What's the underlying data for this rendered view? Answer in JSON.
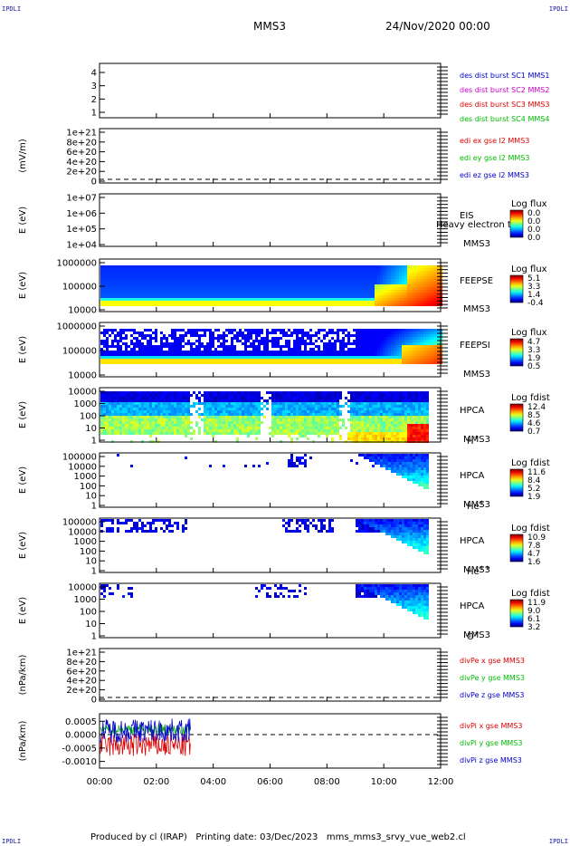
{
  "header": {
    "corner_left_top": "IPDLI",
    "corner_right_top": "IPDLI",
    "corner_left_bottom": "IPDLI",
    "corner_right_bottom": "IPDLI",
    "title": "MMS3",
    "date": "24/Nov/2020 00:00"
  },
  "footer": {
    "produced": "Produced by cl (IRAP)",
    "printing": "Printing date: 03/Dec/2023",
    "script": "mms_mms3_srvy_vue_web2.cl"
  },
  "colors": {
    "blue": "#0000cc",
    "magenta": "#cc00cc",
    "red": "#dd0000",
    "green": "#00bb00"
  },
  "chart_data": {
    "type": "multi-panel time series / spectrogram",
    "x_tick_labels": [
      "00:00",
      "02:00",
      "04:00",
      "06:00",
      "08:00",
      "10:00",
      "12:00"
    ],
    "xlim_hours": [
      0,
      12
    ],
    "panels": [
      {
        "type": "line",
        "y_tick_labels": [
          "1",
          "2",
          "3",
          "4"
        ],
        "ylim": [
          0.6,
          4.4
        ],
        "ylabel": "",
        "legend": [
          {
            "text": "des dist burst SC1 MMS1",
            "color": "#0000cc"
          },
          {
            "text": "des dist burst SC2 MMS2",
            "color": "#cc00cc"
          },
          {
            "text": "des dist burst SC3 MMS3",
            "color": "#dd0000"
          },
          {
            "text": "des dist burst SC4 MMS4",
            "color": "#00bb00"
          }
        ]
      },
      {
        "type": "line",
        "ylabel": "(mV/m)",
        "y_tick_labels": [
          "0",
          "2e+20",
          "4e+20",
          "6e+20",
          "8e+20",
          "1e+21"
        ],
        "dashed_zero": true,
        "legend": [
          {
            "text": "edi ex gse l2 MMS3",
            "color": "#dd0000"
          },
          {
            "text": "edi ey gse l2 MMS3",
            "color": "#00bb00"
          },
          {
            "text": "edi ez gse l2 MMS3",
            "color": "#0000cc"
          }
        ]
      },
      {
        "type": "heatmap",
        "ylabel": "E (eV)",
        "y_tick_labels": [
          "1e+04",
          "1e+05",
          "1e+06",
          "1e+07"
        ],
        "instrument": "EIS",
        "instrument_sub": "Heavy electron t",
        "sc": "MMS3",
        "cbar_title": "Log flux",
        "cbar_ticks": [
          "0.0",
          "0.0",
          "0.0",
          "0.0"
        ],
        "pattern": "empty"
      },
      {
        "type": "heatmap",
        "ylabel": "E (eV)",
        "y_tick_labels": [
          "10000",
          "100000",
          "1000000"
        ],
        "instrument": "FEEPSE",
        "sc": "MMS3",
        "cbar_title": "Log flux",
        "cbar_ticks": [
          "5.1",
          "3.3",
          "1.4",
          "-0.4"
        ],
        "pattern": "feeps_e"
      },
      {
        "type": "heatmap",
        "ylabel": "E (eV)",
        "y_tick_labels": [
          "10000",
          "100000",
          "1000000"
        ],
        "instrument": "FEEPSI",
        "sc": "MMS3",
        "cbar_title": "Log flux",
        "cbar_ticks": [
          "4.7",
          "3.3",
          "1.9",
          "0.5"
        ],
        "pattern": "feeps_i"
      },
      {
        "type": "heatmap",
        "ylabel": "E (eV)",
        "y_tick_labels": [
          "1",
          "10",
          "100",
          "1000",
          "10000"
        ],
        "instrument": "HPCA",
        "sc": "MMS3",
        "species": "H",
        "species_sup": "+",
        "cbar_title": "Log fdist",
        "cbar_ticks": [
          "12.4",
          "8.5",
          "4.6",
          "0.7"
        ],
        "pattern": "hpca_h"
      },
      {
        "type": "heatmap",
        "ylabel": "E (eV)",
        "y_tick_labels": [
          "1",
          "10",
          "100",
          "1000",
          "10000",
          "100000"
        ],
        "instrument": "HPCA",
        "sc": "MMS3",
        "species": "He",
        "species_sup": "+",
        "cbar_title": "Log fdist",
        "cbar_ticks": [
          "11.6",
          "8.4",
          "5.2",
          "1.9"
        ],
        "pattern": "hpca_he"
      },
      {
        "type": "heatmap",
        "ylabel": "E (eV)",
        "y_tick_labels": [
          "1",
          "10",
          "100",
          "1000",
          "10000",
          "100000"
        ],
        "instrument": "HPCA",
        "sc": "MMS3",
        "species": "He",
        "species_sup": "++",
        "cbar_title": "Log fdist",
        "cbar_ticks": [
          "10.9",
          "7.8",
          "4.7",
          "1.6"
        ],
        "pattern": "hpca_hepp"
      },
      {
        "type": "heatmap",
        "ylabel": "E (eV)",
        "y_tick_labels": [
          "1",
          "10",
          "100",
          "1000",
          "10000"
        ],
        "instrument": "HPCA",
        "sc": "MMS3",
        "species": "O",
        "species_sup": "+",
        "cbar_title": "Log fdist",
        "cbar_ticks": [
          "11.9",
          "9.0",
          "6.1",
          "3.2"
        ],
        "pattern": "hpca_o"
      },
      {
        "type": "line",
        "ylabel": "(nPa/km)",
        "y_tick_labels": [
          "0",
          "2e+20",
          "4e+20",
          "6e+20",
          "8e+20",
          "1e+21"
        ],
        "dashed_zero": true,
        "legend": [
          {
            "text": "divPe x gse MMS3",
            "color": "#dd0000"
          },
          {
            "text": "divPe y gse MMS3",
            "color": "#00bb00"
          },
          {
            "text": "divPe z gse MMS3",
            "color": "#0000cc"
          }
        ]
      },
      {
        "type": "line",
        "ylabel": "(nPa/km)",
        "y_tick_labels": [
          "-0.0010",
          "-0.0005",
          "0.0000",
          "0.0005"
        ],
        "ylim": [
          -0.00125,
          0.00078
        ],
        "dashed_zero": true,
        "data_end_hour": 3.2,
        "series_amplitude": [
          {
            "name": "divPi x gse MMS3",
            "center": -0.0004,
            "amplitude": 0.00045
          },
          {
            "name": "divPi y gse MMS3",
            "center": 0.0002,
            "amplitude": 0.0002
          },
          {
            "name": "divPi z gse MMS3",
            "center": 0.00015,
            "amplitude": 0.00045
          }
        ],
        "legend": [
          {
            "text": "divPi x gse MMS3",
            "color": "#dd0000"
          },
          {
            "text": "divPi y gse MMS3",
            "color": "#00bb00"
          },
          {
            "text": "divPi z gse MMS3",
            "color": "#0000cc"
          }
        ]
      }
    ]
  }
}
